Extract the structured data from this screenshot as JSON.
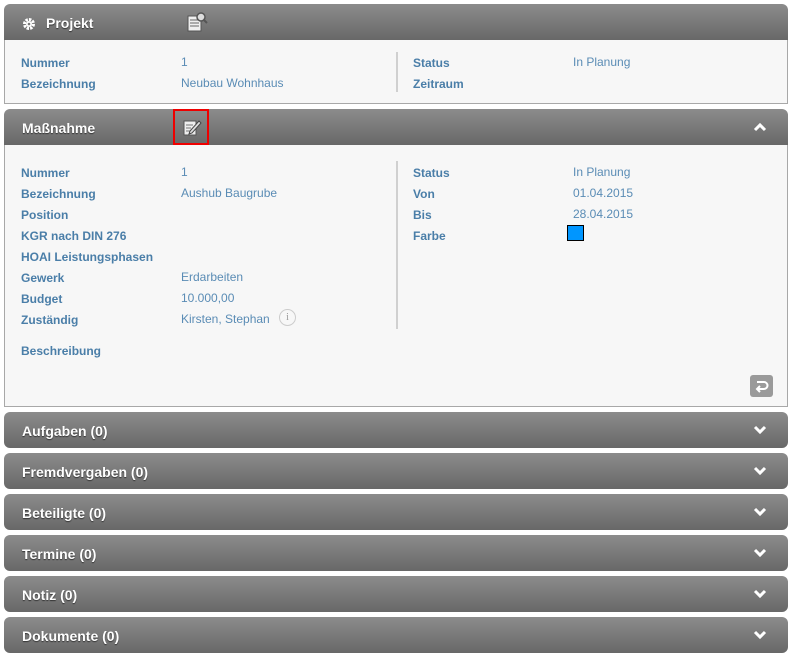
{
  "projekt": {
    "title": "Projekt",
    "icon": "gear-icon",
    "action_icon": "document-search-icon",
    "left": [
      {
        "label": "Nummer",
        "value": "1"
      },
      {
        "label": "Bezeichnung",
        "value": "Neubau Wohnhaus"
      }
    ],
    "right": [
      {
        "label": "Status",
        "value": "In Planung"
      },
      {
        "label": "Zeitraum",
        "value": ""
      }
    ]
  },
  "massnahme": {
    "title": "Maßnahme",
    "action_icon": "edit-icon",
    "left": [
      {
        "label": "Nummer",
        "value": "1"
      },
      {
        "label": "Bezeichnung",
        "value": "Aushub Baugrube"
      },
      {
        "label": "Position",
        "value": ""
      },
      {
        "label": "KGR nach DIN 276",
        "value": ""
      },
      {
        "label": "HOAI Leistungsphasen",
        "value": ""
      },
      {
        "label": "Gewerk",
        "value": "Erdarbeiten"
      },
      {
        "label": "Budget",
        "value": "10.000,00"
      },
      {
        "label": "Zuständig",
        "value": "Kirsten, Stephan"
      }
    ],
    "right": [
      {
        "label": "Status",
        "value": "In Planung"
      },
      {
        "label": "Von",
        "value": "01.04.2015"
      },
      {
        "label": "Bis",
        "value": "28.04.2015"
      },
      {
        "label": "Farbe",
        "value": ""
      }
    ],
    "farbe": "#0096ff",
    "beschreibung_label": "Beschreibung"
  },
  "sections": [
    {
      "title": "Aufgaben (0)"
    },
    {
      "title": "Fremdvergaben (0)"
    },
    {
      "title": "Beteiligte (0)"
    },
    {
      "title": "Termine (0)"
    },
    {
      "title": "Notiz (0)"
    },
    {
      "title": "Dokumente (0)"
    }
  ]
}
